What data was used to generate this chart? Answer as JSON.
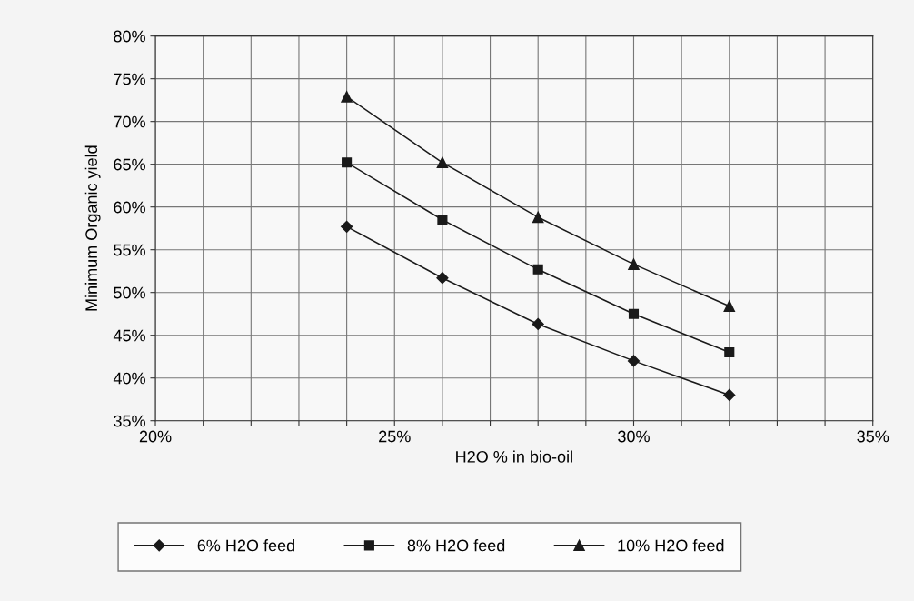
{
  "chart_data": {
    "type": "line",
    "xlabel": "H2O % in bio-oil",
    "ylabel": "Minimum Organic yield",
    "x": [
      24,
      26,
      28,
      30,
      32
    ],
    "series": [
      {
        "name": "6% H2O feed",
        "color": "#1a1a1a",
        "marker": "diamond",
        "values": [
          57.7,
          51.7,
          46.3,
          42.0,
          38.0
        ]
      },
      {
        "name": "8% H2O feed",
        "color": "#1a1a1a",
        "marker": "square",
        "values": [
          65.2,
          58.5,
          52.7,
          47.5,
          43.0
        ]
      },
      {
        "name": "10% H2O feed",
        "color": "#1a1a1a",
        "marker": "triangle",
        "values": [
          72.9,
          65.2,
          58.8,
          53.3,
          48.4
        ]
      }
    ],
    "xlim": [
      20,
      35
    ],
    "xticks": [
      {
        "value": 20,
        "label": "20%"
      },
      {
        "value": 21,
        "label": null
      },
      {
        "value": 22,
        "label": null
      },
      {
        "value": 23,
        "label": null
      },
      {
        "value": 24,
        "label": null
      },
      {
        "value": 25,
        "label": "25%"
      },
      {
        "value": 26,
        "label": null
      },
      {
        "value": 27,
        "label": null
      },
      {
        "value": 28,
        "label": null
      },
      {
        "value": 29,
        "label": null
      },
      {
        "value": 30,
        "label": "30%"
      },
      {
        "value": 31,
        "label": null
      },
      {
        "value": 32,
        "label": null
      },
      {
        "value": 33,
        "label": null
      },
      {
        "value": 34,
        "label": null
      },
      {
        "value": 35,
        "label": "35%"
      }
    ],
    "ylim": [
      35,
      80
    ],
    "yticks": [
      {
        "value": 35,
        "label": "35%"
      },
      {
        "value": 40,
        "label": "40%"
      },
      {
        "value": 45,
        "label": "45%"
      },
      {
        "value": 50,
        "label": "50%"
      },
      {
        "value": 55,
        "label": "55%"
      },
      {
        "value": 60,
        "label": "60%"
      },
      {
        "value": 65,
        "label": "65%"
      },
      {
        "value": 70,
        "label": "70%"
      },
      {
        "value": 75,
        "label": "75%"
      },
      {
        "value": 80,
        "label": "80%"
      }
    ],
    "grid": true,
    "legend": "bottom",
    "line_style": "solid"
  }
}
